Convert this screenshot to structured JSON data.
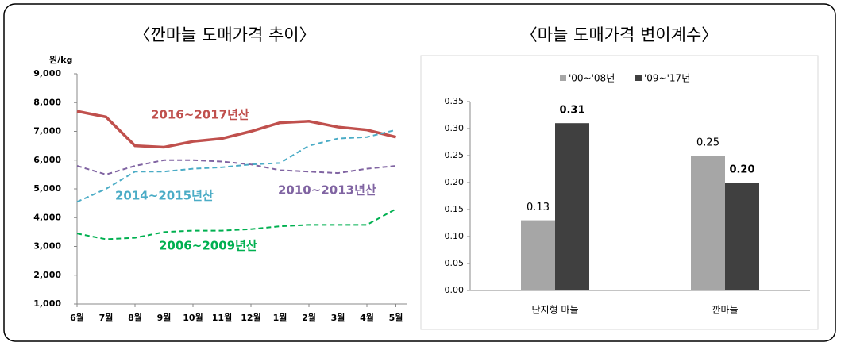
{
  "chart_data": [
    {
      "type": "line",
      "title": "〈깐마늘 도매가격 추이〉",
      "y_label": "원/kg",
      "categories": [
        "6월",
        "7월",
        "8월",
        "9월",
        "10월",
        "11월",
        "12월",
        "1월",
        "2월",
        "3월",
        "4월",
        "5월"
      ],
      "ylim": [
        1000,
        9000
      ],
      "yticks": [
        {
          "value": 1000,
          "label": "1,000"
        },
        {
          "value": 2000,
          "label": "2,000"
        },
        {
          "value": 3000,
          "label": "3,000"
        },
        {
          "value": 4000,
          "label": "4,000"
        },
        {
          "value": 5000,
          "label": "5,000"
        },
        {
          "value": 6000,
          "label": "6,000"
        },
        {
          "value": 7000,
          "label": "7,000"
        },
        {
          "value": 8000,
          "label": "8,000"
        },
        {
          "value": 9000,
          "label": "9,000"
        }
      ],
      "series": [
        {
          "name": "2016~2017년산",
          "color": "#c0504d",
          "dash": false,
          "values": [
            7700,
            7500,
            6500,
            6450,
            6650,
            6750,
            7000,
            7300,
            7350,
            7150,
            7050,
            6800
          ]
        },
        {
          "name": "2014~2015년산",
          "color": "#4bacc6",
          "dash": true,
          "values": [
            4550,
            5000,
            5600,
            5600,
            5700,
            5750,
            5850,
            5900,
            6500,
            6750,
            6800,
            7050
          ]
        },
        {
          "name": "2010~2013년산",
          "color": "#8064a2",
          "dash": true,
          "values": [
            5800,
            5500,
            5800,
            6000,
            6000,
            5950,
            5850,
            5650,
            5600,
            5550,
            5700,
            5800
          ]
        },
        {
          "name": "2006~2009년산",
          "color": "#00b050",
          "dash": true,
          "values": [
            3450,
            3250,
            3300,
            3500,
            3550,
            3550,
            3600,
            3700,
            3750,
            3750,
            3750,
            4300
          ]
        }
      ]
    },
    {
      "type": "bar",
      "title": "〈마늘 도매가격 변이계수〉",
      "categories": [
        "난지형 마늘",
        "깐마늘"
      ],
      "ylim": [
        0,
        0.35
      ],
      "yticks": [
        {
          "value": 0,
          "label": "0.00"
        },
        0.05,
        {
          "value": 0.1,
          "label": "0.10"
        },
        0.15,
        {
          "value": 0.2,
          "label": "0.20"
        },
        0.25,
        {
          "value": 0.3,
          "label": "0.30"
        },
        0.35
      ],
      "series": [
        {
          "name": "'00~'08년",
          "color": "#a6a6a6",
          "values": [
            0.13,
            0.25
          ],
          "value_labels": [
            "0.13",
            "0.25"
          ]
        },
        {
          "name": "'09~'17년",
          "color": "#404040",
          "values": [
            0.31,
            0.2
          ],
          "value_labels": [
            "0.31",
            "0.20"
          ]
        }
      ]
    }
  ]
}
